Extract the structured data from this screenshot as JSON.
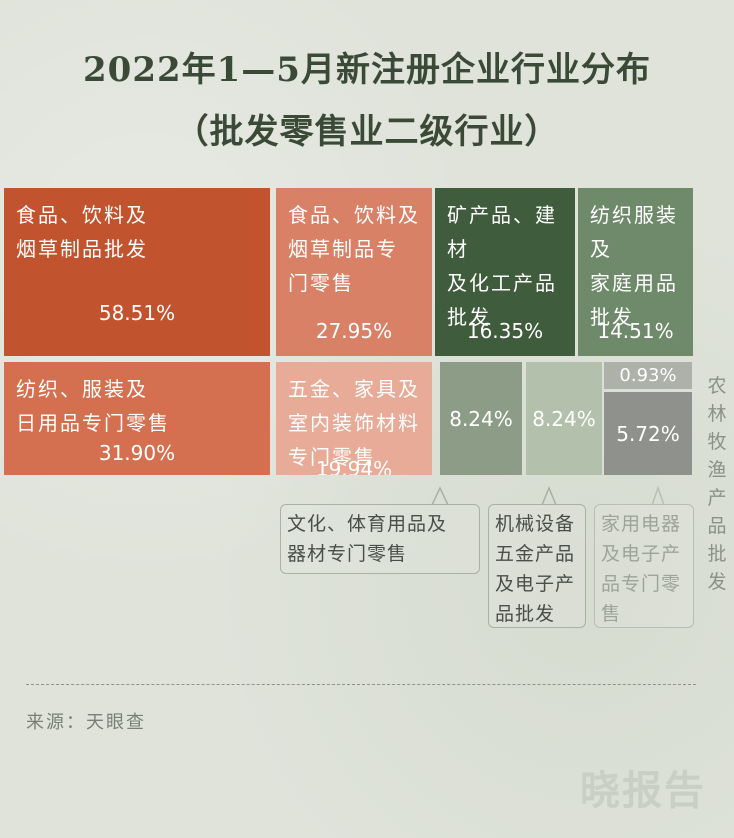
{
  "title_line1": "2022年1—5月新注册企业行业分布",
  "title_line2": "（批发零售业二级行业）",
  "chart_data": {
    "type": "treemap",
    "title": "2022年1—5月新注册企业行业分布（批发零售业二级行业）",
    "items": [
      {
        "name": "食品、饮料及烟草制品批发",
        "display": "食品、饮料及\n烟草制品批发",
        "value_label": "58.51%",
        "value": 58.51,
        "color": "#c2532f"
      },
      {
        "name": "食品、饮料及烟草制品专门零售",
        "display": "食品、饮料及\n烟草制品专\n门零售",
        "value_label": "27.95%",
        "value": 27.95,
        "color": "#d98167"
      },
      {
        "name": "矿产品、建材及化工产品批发",
        "display": "矿产品、建材\n及化工产品\n批发",
        "value_label": "16.35%",
        "value": 16.35,
        "color": "#3f5c3c"
      },
      {
        "name": "纺织服装及家庭用品批发",
        "display": "纺织服装及\n家庭用品\n批发",
        "value_label": "14.51%",
        "value": 14.51,
        "color": "#6f8a6a"
      },
      {
        "name": "纺织、服装及日用品专门零售",
        "display": "纺织、服装及\n日用品专门零售",
        "value_label": "31.90%",
        "value": 31.9,
        "color": "#d4704f"
      },
      {
        "name": "五金、家具及室内装饰材料专门零售",
        "display": "五金、家具及\n室内装饰材料\n专门零售",
        "value_label": "19.94%",
        "value": 19.94,
        "color": "#e8ab97"
      },
      {
        "name": "文化、体育用品及器材专门零售",
        "display": "",
        "value_label": "8.24%",
        "value": 8.24,
        "color": "#8d9c87"
      },
      {
        "name": "机械设备五金产品及电子产品批发",
        "display": "",
        "value_label": "8.24%",
        "value": 8.24,
        "color": "#b3c0ab"
      },
      {
        "name": "农林牧渔产品批发",
        "display": "",
        "value_label": "0.93%",
        "value": 0.93,
        "color": "#aeb0aa"
      },
      {
        "name": "家用电器及电子产品专门零售",
        "display": "",
        "value_label": "5.72%",
        "value": 5.72,
        "color": "#8f918d"
      }
    ]
  },
  "callouts": {
    "wenhua": "文化、体育用品及\n器材专门零售",
    "jixie": "机械设备\n五金产品\n及电子产\n品批发",
    "jiadian": "家用电器\n及电子产\n品专门零\n售"
  },
  "side_label": "农林牧渔产品批发",
  "source": "来源：天眼查",
  "brand": "晓报告"
}
